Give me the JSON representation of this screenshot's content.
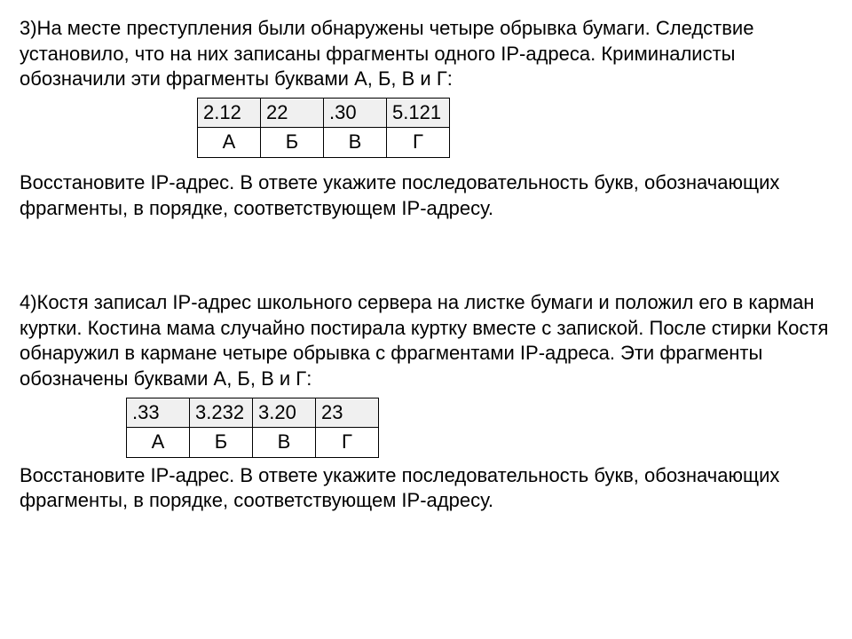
{
  "problem3": {
    "text1": "3)На месте преступления были обнаружены четыре обрывка бумаги. Следствие установило, что на них записаны фрагменты одного IP-адреса. Криминалисты обозначили эти фрагменты буквами А, Б, В и Г:",
    "table": {
      "values": [
        "2.12",
        "22",
        ".30",
        "5.121"
      ],
      "labels": [
        "А",
        "Б",
        "В",
        "Г"
      ]
    },
    "text2": "Восстановите IP-адрес. В ответе укажите последовательность букв, обозначающих фрагменты, в порядке, соответствующем IP-адресу."
  },
  "problem4": {
    "text1": "4)Костя записал IP-адрес школьного сервера на листке бумаги и положил его в карман куртки. Костина мама случайно постирала куртку вместе с запиской. После стирки Костя обнаружил в кармане четыре обрывка с фрагментами IP-адреса. Эти фрагменты обозначены буквами А, Б, В и Г:",
    "table": {
      "values": [
        ".33",
        "3.232",
        "3.20",
        "23"
      ],
      "labels": [
        "А",
        "Б",
        "В",
        "Г"
      ]
    },
    "text2": "Восстановите IP-адрес. В ответе укажите последовательность букв, обозначающих фрагменты, в порядке, соответствующем IP-адресу."
  }
}
